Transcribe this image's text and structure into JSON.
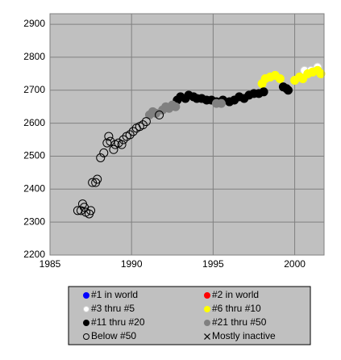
{
  "chart_data": {
    "type": "scatter",
    "xlim": [
      1985,
      2001.8
    ],
    "xticks": [
      1985,
      1990,
      1995,
      2000
    ],
    "ylim": [
      2200,
      2932
    ],
    "yticks": [
      2200,
      2300,
      2400,
      2500,
      2600,
      2700,
      2800,
      2900
    ],
    "grid": true,
    "legend": "bottom",
    "series": [
      {
        "name": "#1 in world",
        "color": "#0000ff",
        "marker": "filled",
        "x": [],
        "values": []
      },
      {
        "name": "#2 in world",
        "color": "#ff0000",
        "marker": "filled",
        "x": [],
        "values": []
      },
      {
        "name": "#3 thru #5",
        "color": "#ffffff",
        "marker": "filled",
        "x": [
          2000.6,
          2001.0,
          2001.4
        ],
        "values": [
          2760,
          2760,
          2770
        ]
      },
      {
        "name": "#6 thru #10",
        "color": "#ffff00",
        "marker": "filled",
        "x": [
          1998.0,
          1998.2,
          1998.5,
          1998.8,
          1999.1,
          2000.0,
          2000.3,
          2000.5,
          2000.8,
          2001.1,
          2001.4,
          2001.6
        ],
        "values": [
          2720,
          2735,
          2740,
          2745,
          2735,
          2730,
          2740,
          2735,
          2750,
          2755,
          2760,
          2750
        ]
      },
      {
        "name": "#11 thru #20",
        "color": "#000000",
        "marker": "filled",
        "x": [
          1992.8,
          1993.0,
          1993.3,
          1993.5,
          1993.8,
          1994.0,
          1994.3,
          1994.6,
          1994.9,
          1995.2,
          1995.6,
          1996.0,
          1996.3,
          1996.6,
          1996.9,
          1997.2,
          1997.5,
          1997.8,
          1998.1,
          1999.3,
          1999.5,
          1999.6
        ],
        "values": [
          2670,
          2680,
          2675,
          2685,
          2680,
          2675,
          2675,
          2670,
          2670,
          2665,
          2670,
          2665,
          2670,
          2680,
          2675,
          2685,
          2690,
          2690,
          2695,
          2710,
          2705,
          2700
        ]
      },
      {
        "name": "#21 thru #50",
        "color": "#808080",
        "marker": "filled",
        "x": [
          1991.1,
          1991.3,
          1991.5,
          1991.9,
          1992.1,
          1992.3,
          1992.5,
          1992.7,
          1995.2,
          1995.5
        ],
        "values": [
          2625,
          2635,
          2630,
          2640,
          2650,
          2645,
          2655,
          2650,
          2660,
          2660
        ]
      },
      {
        "name": "Below #50",
        "color": "#000000",
        "marker": "open",
        "x": [
          1986.7,
          1986.9,
          1987.0,
          1987.1,
          1987.2,
          1987.4,
          1987.5,
          1987.6,
          1987.8,
          1987.9,
          1988.1,
          1988.3,
          1988.5,
          1988.6,
          1988.7,
          1988.9,
          1989.0,
          1989.2,
          1989.4,
          1989.5,
          1989.7,
          1989.9,
          1990.1,
          1990.3,
          1990.5,
          1990.7,
          1990.9,
          1991.7
        ],
        "values": [
          2335,
          2335,
          2355,
          2345,
          2330,
          2325,
          2335,
          2420,
          2420,
          2430,
          2495,
          2510,
          2540,
          2560,
          2545,
          2520,
          2535,
          2540,
          2535,
          2550,
          2560,
          2565,
          2575,
          2585,
          2590,
          2595,
          2605,
          2625
        ]
      },
      {
        "name": "Mostly inactive",
        "color": "#000000",
        "marker": "x",
        "x": [],
        "values": []
      }
    ]
  }
}
